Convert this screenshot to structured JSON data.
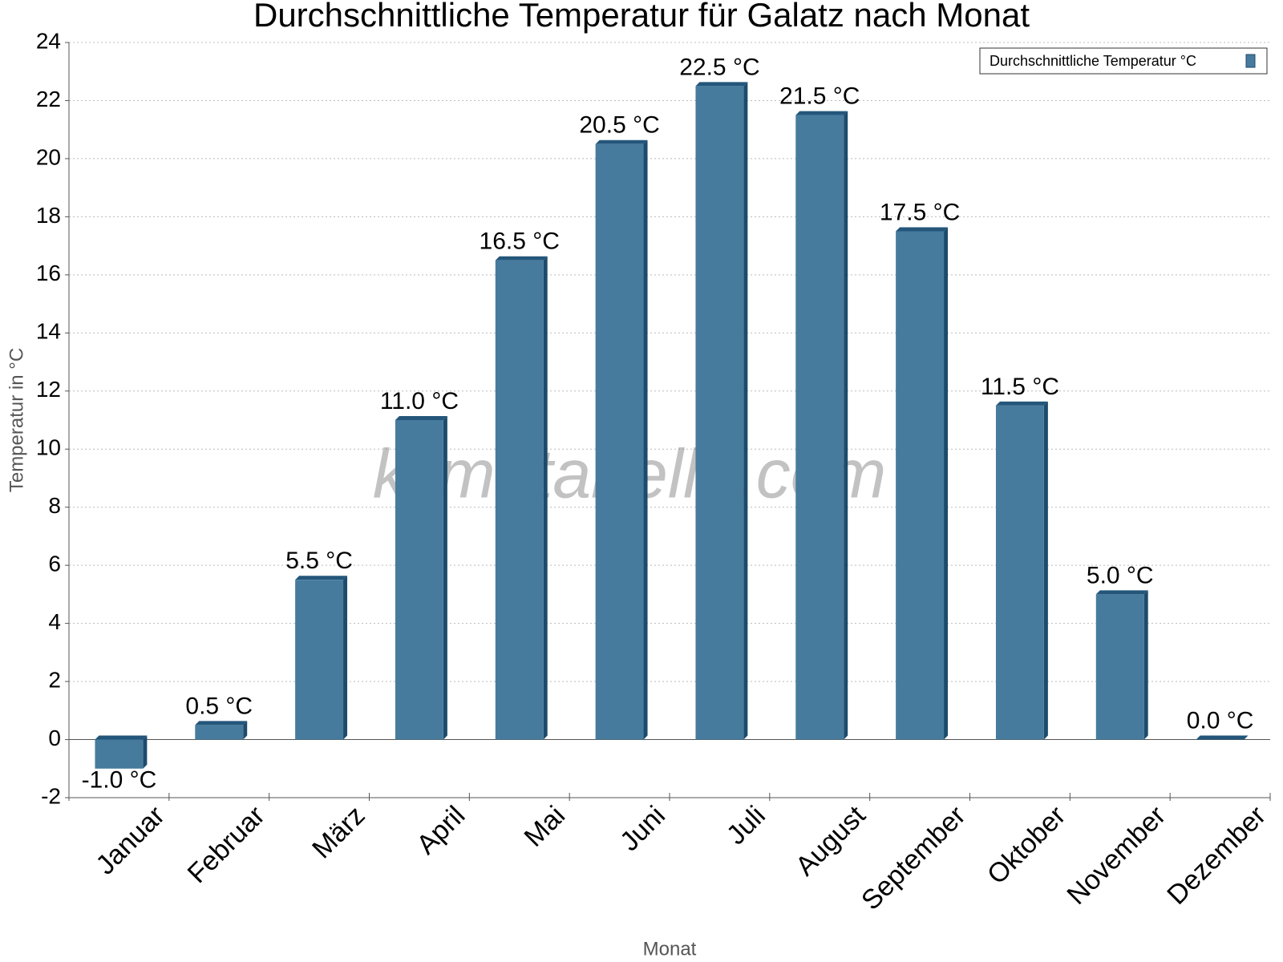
{
  "chart_data": {
    "type": "bar",
    "title": "Durchschnittliche Temperatur für Galatz nach Monat",
    "x_label": "Monat",
    "y_label": "Temperatur in °C",
    "watermark": "klimatabelle.com",
    "categories": [
      "Januar",
      "Februar",
      "März",
      "April",
      "Mai",
      "Juni",
      "Juli",
      "August",
      "September",
      "Oktober",
      "November",
      "Dezember"
    ],
    "series": [
      {
        "name": "Durchschnittliche Temperatur °C",
        "color": "#467b9e",
        "values": [
          -1.0,
          0.5,
          5.5,
          11.0,
          16.5,
          20.5,
          22.5,
          21.5,
          17.5,
          11.5,
          5.0,
          0.0
        ],
        "value_labels": [
          "-1.0 °C",
          "0.5 °C",
          "5.5 °C",
          "11.0 °C",
          "16.5 °C",
          "20.5 °C",
          "22.5 °C",
          "21.5 °C",
          "17.5 °C",
          "11.5 °C",
          "5.0 °C",
          "0.0 °C"
        ]
      }
    ],
    "ylim": [
      -2,
      24
    ],
    "yticks": [
      -2,
      0,
      2,
      4,
      6,
      8,
      10,
      12,
      14,
      16,
      18,
      20,
      22,
      24
    ],
    "grid": true,
    "legend": "upper right"
  }
}
